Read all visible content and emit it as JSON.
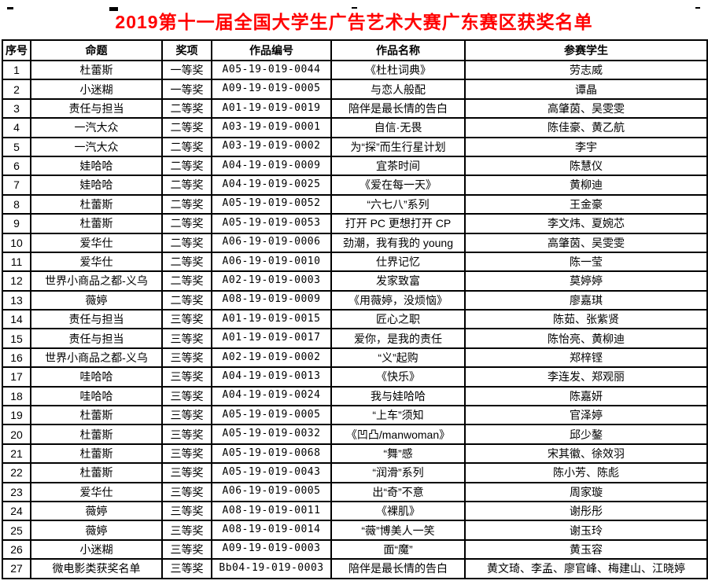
{
  "title": "2019第十一届全国大学生广告艺术大赛广东赛区获奖名单",
  "colors": {
    "title_text": "#FF0000",
    "table_border": "#000000",
    "body_text": "#000000",
    "background": "#FFFFFF"
  },
  "table": {
    "headers": [
      "序号",
      "命题",
      "奖项",
      "作品编号",
      "作品名称",
      "参赛学生"
    ],
    "rows": [
      [
        "1",
        "杜蕾斯",
        "一等奖",
        "A05-19-019-0044",
        "《杜杜词典》",
        "劳志威"
      ],
      [
        "2",
        "小迷糊",
        "一等奖",
        "A09-19-019-0005",
        "与恋人般配",
        "谭晶"
      ],
      [
        "3",
        "责任与担当",
        "二等奖",
        "A01-19-019-0019",
        "陪伴是最长情的告白",
        "高肇茵、吴雯雯"
      ],
      [
        "4",
        "一汽大众",
        "二等奖",
        "A03-19-019-0001",
        "自信·无畏",
        "陈佳豪、黄乙航"
      ],
      [
        "5",
        "一汽大众",
        "二等奖",
        "A03-19-019-0002",
        "为“探”而生行星计划",
        "李宇"
      ],
      [
        "6",
        "娃哈哈",
        "二等奖",
        "A04-19-019-0009",
        "宜茶时间",
        "陈慧仪"
      ],
      [
        "7",
        "娃哈哈",
        "二等奖",
        "A04-19-019-0025",
        "《爱在每一天》",
        "黄柳迪"
      ],
      [
        "8",
        "杜蕾斯",
        "二等奖",
        "A05-19-019-0052",
        "“六七八”系列",
        "王金豪"
      ],
      [
        "9",
        "杜蕾斯",
        "二等奖",
        "A05-19-019-0053",
        "打开 PC 更想打开 CP",
        "李文炜、夏婉芯"
      ],
      [
        "10",
        "爱华仕",
        "二等奖",
        "A06-19-019-0006",
        "劲潮，我有我的 young",
        "高肇茵、吴雯雯"
      ],
      [
        "11",
        "爱华仕",
        "二等奖",
        "A06-19-019-0010",
        "仕界记忆",
        "陈一莹"
      ],
      [
        "12",
        "世界小商品之都-义乌",
        "二等奖",
        "A02-19-019-0003",
        "发家致富",
        "莫婷婷"
      ],
      [
        "13",
        "薇婷",
        "二等奖",
        "A08-19-019-0009",
        "《用薇婷，没烦恼》",
        "廖嘉琪"
      ],
      [
        "14",
        "责任与担当",
        "三等奖",
        "A01-19-019-0015",
        "匠心之职",
        "陈茹、张紫贤"
      ],
      [
        "15",
        "责任与担当",
        "三等奖",
        "A01-19-019-0017",
        "爱你，是我的责任",
        "陈怡亮、黄柳迪"
      ],
      [
        "16",
        "世界小商品之都-义乌",
        "三等奖",
        "A02-19-019-0002",
        "“义”起购",
        "郑梓铿"
      ],
      [
        "17",
        "哇哈哈",
        "三等奖",
        "A04-19-019-0013",
        "《快乐》",
        "李连发、郑观丽"
      ],
      [
        "18",
        "哇哈哈",
        "三等奖",
        "A04-19-019-0024",
        "我与娃哈哈",
        "陈嘉妍"
      ],
      [
        "19",
        "杜蕾斯",
        "三等奖",
        "A05-19-019-0005",
        "“上车”须知",
        "官泽婷"
      ],
      [
        "20",
        "杜蕾斯",
        "三等奖",
        "A05-19-019-0032",
        "《凹凸/manwoman》",
        "邱少鏊"
      ],
      [
        "21",
        "杜蕾斯",
        "三等奖",
        "A05-19-019-0068",
        "“舞”感",
        "宋其徽、徐效羽"
      ],
      [
        "22",
        "杜蕾斯",
        "三等奖",
        "A05-19-019-0043",
        "“润滑”系列",
        "陈小芳、陈彪"
      ],
      [
        "23",
        "爱华仕",
        "三等奖",
        "A06-19-019-0005",
        "出“奇”不意",
        "周家璇"
      ],
      [
        "24",
        "薇婷",
        "三等奖",
        "A08-19-019-0011",
        "《裸肌》",
        "谢彤彤"
      ],
      [
        "25",
        "薇婷",
        "三等奖",
        "A08-19-019-0014",
        "“薇”博美人一笑",
        "谢玉玲"
      ],
      [
        "26",
        "小迷糊",
        "三等奖",
        "A09-19-019-0003",
        "面“魔”",
        "黄玉容"
      ],
      [
        "27",
        "微电影类获奖名单",
        "三等奖",
        "Bb04-19-019-0003",
        "陪伴是最长情的告白",
        "黄文琦、李孟、廖官峰、梅建山、江晓婷"
      ]
    ]
  }
}
